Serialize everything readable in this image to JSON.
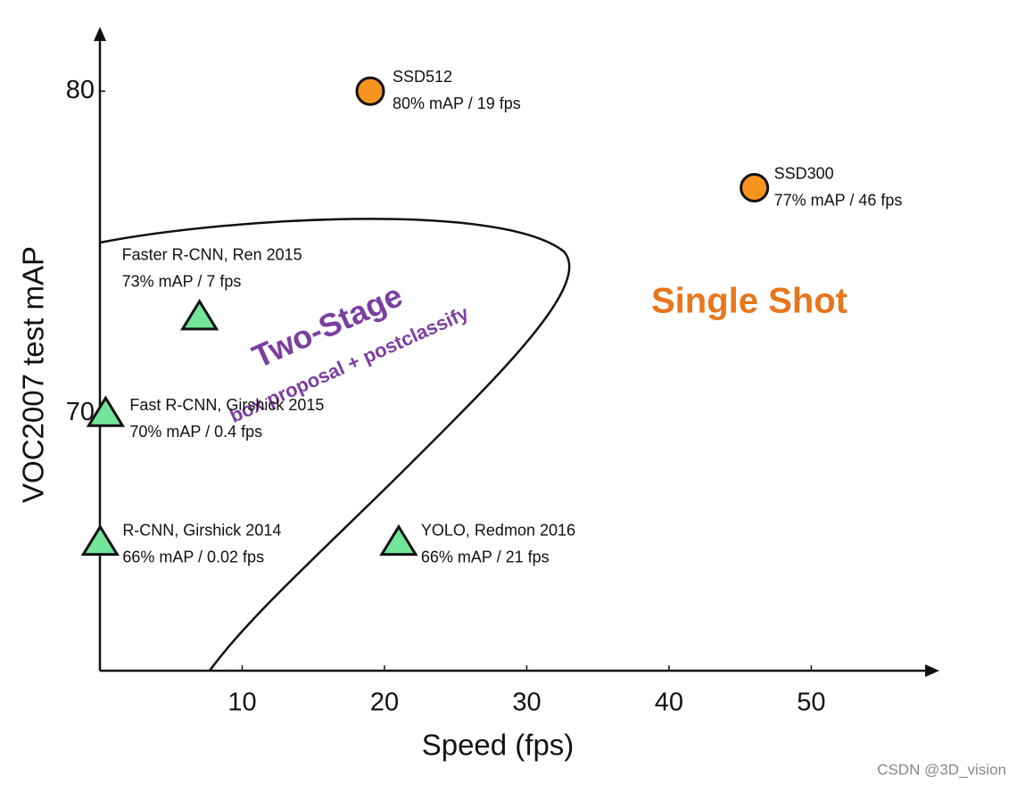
{
  "chart_data": {
    "type": "scatter",
    "x_label": "Speed (fps)",
    "y_label": "VOC2007 test mAP",
    "xlim": [
      0,
      58
    ],
    "ylim": [
      62,
      82
    ],
    "xticks": [
      10,
      20,
      30,
      40,
      50
    ],
    "yticks": [
      70,
      80
    ],
    "points": [
      {
        "label": "SSD512",
        "sublabel": "80% mAP / 19 fps",
        "x": 19,
        "y": 80,
        "marker": "circle",
        "color": "#f7941d"
      },
      {
        "label": "SSD300",
        "sublabel": "77% mAP / 46 fps",
        "x": 46,
        "y": 77,
        "marker": "circle",
        "color": "#f7941d"
      },
      {
        "label": "Faster R-CNN, Ren 2015",
        "sublabel": "73% mAP / 7 fps",
        "x": 7,
        "y": 73,
        "marker": "triangle",
        "color": "#72e59a"
      },
      {
        "label": "Fast R-CNN, Girshick 2015",
        "sublabel": "70% mAP / 0.4 fps",
        "x": 0.4,
        "y": 70,
        "marker": "triangle",
        "color": "#72e59a"
      },
      {
        "label": "R-CNN, Girshick 2014",
        "sublabel": "66% mAP / 0.02 fps",
        "x": 0.02,
        "y": 66,
        "marker": "triangle",
        "color": "#72e59a"
      },
      {
        "label": "YOLO, Redmon 2016",
        "sublabel": "66% mAP / 21 fps",
        "x": 21,
        "y": 66,
        "marker": "triangle",
        "color": "#72e59a"
      }
    ],
    "annotations": {
      "single_shot": "Single Shot",
      "two_stage": "Two-Stage",
      "two_stage_note": "box proposal + postclassify"
    },
    "watermark": "CSDN @3D_vision"
  }
}
